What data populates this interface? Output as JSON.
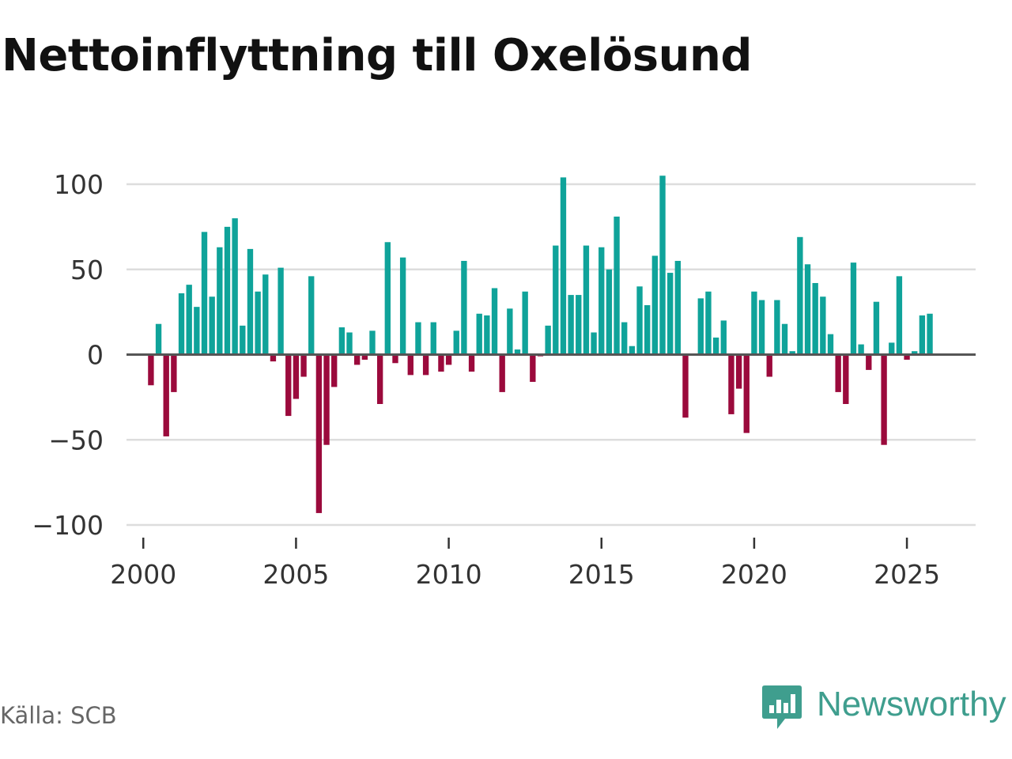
{
  "title": "Nettoinflyttning till Oxelösund",
  "source": "Källa: SCB",
  "brand": {
    "name": "Newsworthy",
    "icon": "newsworthy-logo-icon",
    "color": "#3f9e8e"
  },
  "colors": {
    "positive": "#0fa39a",
    "negative": "#9b0a3c",
    "gridline": "#dddddd",
    "zeroline": "#555555"
  },
  "chart_data": {
    "type": "bar",
    "title": "Nettoinflyttning till Oxelösund",
    "xlabel": "",
    "ylabel": "",
    "frequency": "quarterly",
    "x_start": 2000,
    "x_range": [
      1999.45,
      2027.25
    ],
    "ylim": [
      -100,
      110
    ],
    "yticks": [
      100,
      50,
      0,
      -50,
      -100
    ],
    "ytick_labels": [
      "100",
      "50",
      "0",
      "−50",
      "−100"
    ],
    "xticks": [
      2000,
      2005,
      2010,
      2015,
      2020,
      2025
    ],
    "xtick_labels": [
      "2000",
      "2005",
      "2010",
      "2015",
      "2020",
      "2025"
    ],
    "grid": true,
    "values": [
      0,
      -18,
      18,
      -48,
      -22,
      36,
      41,
      28,
      72,
      34,
      63,
      75,
      80,
      17,
      62,
      37,
      47,
      -4,
      51,
      -36,
      -26,
      -13,
      46,
      -93,
      -53,
      -19,
      16,
      13,
      -6,
      -3,
      14,
      -29,
      66,
      -5,
      57,
      -12,
      19,
      -12,
      19,
      -10,
      -6,
      14,
      55,
      -10,
      24,
      23,
      39,
      -22,
      27,
      3,
      37,
      -16,
      -1,
      17,
      64,
      104,
      35,
      35,
      64,
      13,
      63,
      50,
      81,
      19,
      5,
      40,
      29,
      58,
      105,
      48,
      55,
      -37,
      0,
      33,
      37,
      10,
      20,
      -35,
      -20,
      -46,
      37,
      32,
      -13,
      32,
      18,
      2,
      69,
      53,
      42,
      34,
      12,
      -22,
      -29,
      54,
      6,
      -9,
      31,
      -53,
      7,
      46,
      -3,
      2,
      23,
      24
    ]
  }
}
